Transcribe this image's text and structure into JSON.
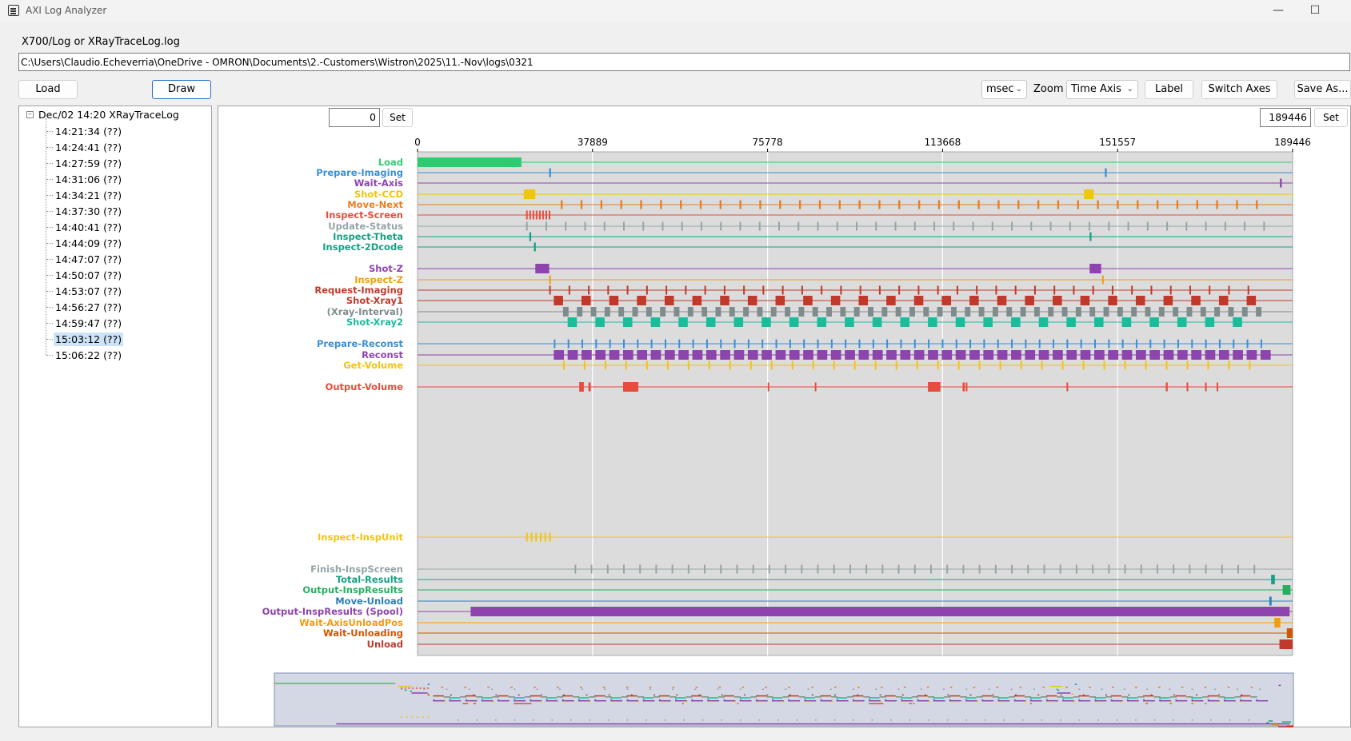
{
  "window": {
    "title": "AXI Log Analyzer",
    "minimize": "—",
    "maximize": "☐"
  },
  "path": {
    "label": "X700/Log or XRayTraceLog.log",
    "value": "C:\\Users\\Claudio.Echeverria\\OneDrive - OMRON\\Documents\\2.-Customers\\Wistron\\2025\\11.-Nov\\logs\\0321"
  },
  "toolbar": {
    "load": "Load",
    "draw": "Draw",
    "unit": "msec",
    "zoom_label": "Zoom",
    "zoom": "Time Axis",
    "label": "Label",
    "switch_axes": "Switch Axes",
    "save_as": "Save As..."
  },
  "tree": {
    "root": "Dec/02 14:20  XRayTraceLog",
    "items": [
      "14:21:34 (??)",
      "14:24:41 (??)",
      "14:27:59 (??)",
      "14:31:06 (??)",
      "14:34:21 (??)",
      "14:37:30 (??)",
      "14:40:41 (??)",
      "14:44:09 (??)",
      "14:47:07 (??)",
      "14:50:07 (??)",
      "14:53:07 (??)",
      "14:56:27 (??)",
      "14:59:47 (??)",
      "15:03:12 (??)",
      "15:06:22 (??)"
    ],
    "selected_index": 13
  },
  "range": {
    "min": "0",
    "max": "189446",
    "set_label": "Set"
  },
  "chart_data": {
    "type": "gantt",
    "x_unit": "msec",
    "xlim": [
      0,
      189446
    ],
    "x_ticks": [
      0,
      37889,
      75778,
      113668,
      151557,
      189446
    ],
    "grid": true,
    "rows": [
      {
        "name": "Load",
        "color": "#2ecc71",
        "segments": [
          [
            0,
            22500
          ]
        ]
      },
      {
        "name": "Prepare-Imaging",
        "color": "#3b8fd4",
        "segments": [
          [
            28500,
            28900
          ],
          [
            148800,
            149200
          ]
        ]
      },
      {
        "name": "Wait-Axis",
        "color": "#8e44ad",
        "segments": [
          [
            186700,
            187100
          ]
        ]
      },
      {
        "name": "Shot-CCD",
        "color": "#f1c40f",
        "segments": [
          [
            23000,
            25500
          ],
          [
            144300,
            146400
          ]
        ]
      },
      {
        "name": "Move-Next",
        "color": "#e67e22",
        "pattern": {
          "start": 31000,
          "end": 183000,
          "period": 4300,
          "width": 400
        }
      },
      {
        "name": "Inspect-Screen",
        "color": "#e74c3c",
        "pattern": {
          "start": 23500,
          "end": 28500,
          "period": 700,
          "width": 300
        }
      },
      {
        "name": "Update-Status",
        "color": "#95a5a6",
        "pattern": {
          "start": 23500,
          "end": 184000,
          "period": 4200,
          "width": 300
        }
      },
      {
        "name": "Inspect-Theta",
        "color": "#16a085",
        "segments": [
          [
            24200,
            24600
          ],
          [
            145500,
            145900
          ]
        ]
      },
      {
        "name": "Inspect-2Dcode",
        "color": "#16a085",
        "segments": [
          [
            25200,
            25600
          ]
        ]
      },
      {
        "name": "Shot-Z",
        "color": "#8e44ad",
        "segments": [
          [
            25500,
            28500
          ],
          [
            145500,
            148000
          ]
        ]
      },
      {
        "name": "Inspect-Z",
        "color": "#f39c12",
        "segments": [
          [
            28500,
            28800
          ],
          [
            148200,
            148500
          ]
        ]
      },
      {
        "name": "Request-Imaging",
        "color": "#c0392b",
        "pattern": {
          "start": 28500,
          "end": 182000,
          "period": 4200,
          "width": 300
        }
      },
      {
        "name": "Shot-Xray1",
        "color": "#c0392b",
        "pattern": {
          "start": 29500,
          "end": 182000,
          "period": 6000,
          "width": 2000
        }
      },
      {
        "name": "(Xray-Interval)",
        "color": "#7f8c8d",
        "pattern": {
          "start": 31500,
          "end": 182000,
          "period": 3000,
          "width": 1200
        }
      },
      {
        "name": "Shot-Xray2",
        "color": "#1abc9c",
        "pattern": {
          "start": 32500,
          "end": 182000,
          "period": 6000,
          "width": 2000
        }
      },
      {
        "name": "Prepare-Reconst",
        "color": "#3b8fd4",
        "pattern": {
          "start": 29500,
          "end": 184000,
          "period": 3000,
          "width": 300
        }
      },
      {
        "name": "Reconst",
        "color": "#8e44ad",
        "pattern": {
          "start": 29500,
          "end": 184000,
          "period": 3000,
          "width": 2200
        }
      },
      {
        "name": "Get-Volume",
        "color": "#f1c40f",
        "pattern": {
          "start": 31500,
          "end": 184000,
          "period": 4500,
          "width": 300
        }
      },
      {
        "name": "Output-Volume",
        "color": "#e74c3c",
        "segments": [
          [
            35000,
            36000
          ],
          [
            37000,
            37500
          ],
          [
            44500,
            47800
          ],
          [
            75800,
            76100
          ],
          [
            86000,
            86300
          ],
          [
            110500,
            113200
          ],
          [
            118000,
            118500
          ],
          [
            118700,
            119000
          ],
          [
            140500,
            140800
          ],
          [
            162000,
            162400
          ],
          [
            166500,
            166800
          ],
          [
            170500,
            170800
          ],
          [
            173000,
            173300
          ]
        ]
      },
      {
        "name": "Inspect-InspUnit",
        "color": "#f1c40f",
        "pattern": {
          "start": 23500,
          "end": 28500,
          "period": 1000,
          "width": 300
        }
      },
      {
        "name": "Finish-InspScreen",
        "color": "#95a5a6",
        "pattern": {
          "start": 34000,
          "end": 182000,
          "period": 3500,
          "width": 300
        }
      },
      {
        "name": "Total-Results",
        "color": "#16a085",
        "segments": [
          [
            184800,
            185600
          ]
        ]
      },
      {
        "name": "Output-InspResults",
        "color": "#27ae60",
        "segments": [
          [
            187300,
            189000
          ]
        ]
      },
      {
        "name": "Move-Unload",
        "color": "#2980b9",
        "segments": [
          [
            184400,
            184900
          ]
        ]
      },
      {
        "name": "Output-InspResults (Spool)",
        "color": "#8e44ad",
        "segments": [
          [
            11500,
            188800
          ]
        ]
      },
      {
        "name": "Wait-AxisUnloadPos",
        "color": "#f39c12",
        "segments": [
          [
            185500,
            186800
          ]
        ]
      },
      {
        "name": "Wait-Unloading",
        "color": "#d35400",
        "segments": [
          [
            188200,
            189446
          ]
        ]
      },
      {
        "name": "Unload",
        "color": "#c0392b",
        "segments": [
          [
            186600,
            189446
          ]
        ]
      }
    ]
  }
}
